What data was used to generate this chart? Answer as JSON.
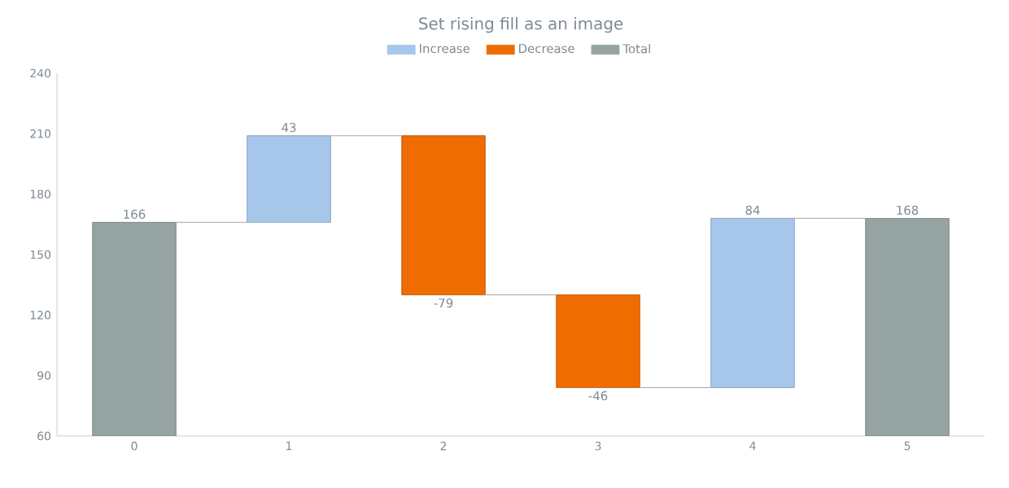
{
  "chart_data": {
    "type": "bar",
    "title": "Set rising fill as an image",
    "categories": [
      "0",
      "1",
      "2",
      "3",
      "4",
      "5"
    ],
    "series": [
      {
        "name": "Increase",
        "color": "#a6c6ea",
        "values": [
          null,
          43,
          null,
          null,
          84,
          null
        ],
        "base": [
          null,
          166,
          null,
          null,
          84,
          null
        ],
        "value_labels": [
          null,
          "43",
          null,
          null,
          "84",
          null
        ]
      },
      {
        "name": "Decrease",
        "color": "#ef6c00",
        "values": [
          null,
          null,
          -79,
          -46,
          null,
          null
        ],
        "base": [
          null,
          null,
          209,
          130,
          null,
          null
        ],
        "value_labels": [
          null,
          null,
          "-79",
          "-46",
          null,
          null
        ]
      },
      {
        "name": "Total",
        "color": "#96a3a3",
        "values": [
          166,
          null,
          null,
          null,
          null,
          168
        ],
        "value_labels": [
          "166",
          null,
          null,
          null,
          null,
          "168"
        ]
      }
    ],
    "ylim": [
      60,
      240
    ],
    "yticks": [
      60,
      90,
      120,
      150,
      180,
      210,
      240
    ],
    "legend": "top",
    "grid": false
  }
}
